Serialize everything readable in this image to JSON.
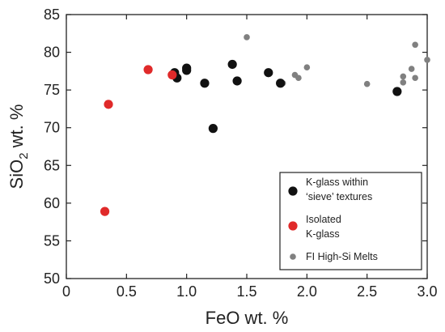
{
  "chart_data": {
    "type": "scatter",
    "xlabel": "FeO wt. %",
    "ylabel": {
      "main": "SiO",
      "sub": "2",
      "tail": " wt. %"
    },
    "xlim": [
      0,
      3.0
    ],
    "ylim": [
      50,
      85
    ],
    "xticks": [
      "0",
      "0.5",
      "1.0",
      "1.5",
      "2.0",
      "2.5",
      "3.0"
    ],
    "xtick_values": [
      0,
      0.5,
      1.0,
      1.5,
      2.0,
      2.5,
      3.0
    ],
    "yticks": [
      "50",
      "55",
      "60",
      "65",
      "70",
      "75",
      "80",
      "85"
    ],
    "ytick_values": [
      50,
      55,
      60,
      65,
      70,
      75,
      80,
      85
    ],
    "legend_position": "bottom-right",
    "series": [
      {
        "name": "K-glass within 'sieve' textures",
        "legend_lines": [
          "K-glass within",
          "‘sieve’ textures"
        ],
        "color": "#111111",
        "size": "large",
        "points": [
          [
            0.9,
            77.3
          ],
          [
            0.92,
            76.6
          ],
          [
            1.0,
            77.9
          ],
          [
            1.0,
            77.6
          ],
          [
            1.15,
            75.9
          ],
          [
            1.22,
            69.9
          ],
          [
            1.38,
            78.4
          ],
          [
            1.42,
            76.2
          ],
          [
            1.68,
            77.3
          ],
          [
            1.78,
            75.9
          ],
          [
            2.75,
            74.8
          ]
        ]
      },
      {
        "name": "Isolated K-glass",
        "legend_lines": [
          "Isolated",
          " K-glass"
        ],
        "color": "#e02a2a",
        "size": "large",
        "points": [
          [
            0.32,
            58.9
          ],
          [
            0.35,
            73.1
          ],
          [
            0.68,
            77.7
          ],
          [
            0.88,
            77.0
          ]
        ]
      },
      {
        "name": "FI High-Si Melts",
        "legend_lines": [
          "FI High-Si Melts"
        ],
        "color": "#808080",
        "size": "small",
        "points": [
          [
            1.5,
            82.0
          ],
          [
            1.8,
            75.9
          ],
          [
            1.9,
            77.0
          ],
          [
            1.93,
            76.6
          ],
          [
            2.0,
            78.0
          ],
          [
            2.5,
            75.8
          ],
          [
            2.8,
            76.8
          ],
          [
            2.8,
            76.0
          ],
          [
            2.87,
            77.8
          ],
          [
            2.9,
            81.0
          ],
          [
            2.9,
            76.6
          ],
          [
            3.0,
            79.0
          ]
        ]
      }
    ]
  }
}
